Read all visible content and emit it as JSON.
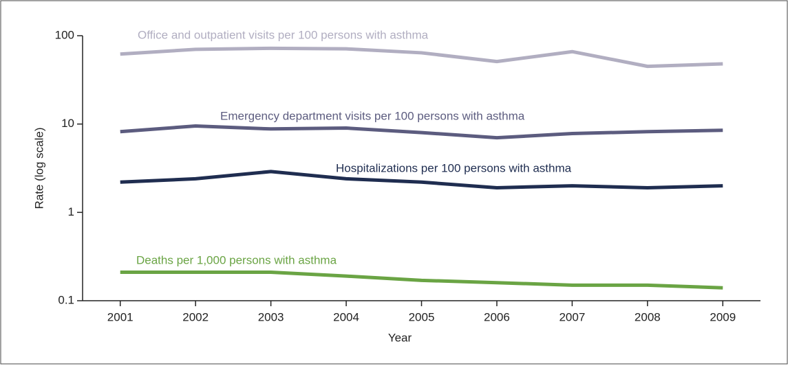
{
  "chart_data": {
    "type": "line",
    "x_label": "Year",
    "y_label": "Rate (log scale)",
    "x": [
      2001,
      2002,
      2003,
      2004,
      2005,
      2006,
      2007,
      2008,
      2009
    ],
    "xlim": [
      2000.5,
      2009.5
    ],
    "xticks": [
      2001,
      2002,
      2003,
      2004,
      2005,
      2006,
      2007,
      2008,
      2009
    ],
    "ylim": [
      0.1,
      100
    ],
    "yticks": [
      0.1,
      1,
      10,
      100
    ],
    "log_y": true,
    "series": [
      {
        "name": "Office and outpatient visits per 100 persons with asthma",
        "color": "#b1aec1",
        "values": [
          62,
          70,
          72,
          71,
          64,
          51,
          66,
          45,
          48
        ]
      },
      {
        "name": "Emergency department visits per 100 persons with asthma",
        "color": "#5c5c7f",
        "values": [
          8.2,
          9.5,
          8.8,
          9.0,
          8.0,
          7.0,
          7.8,
          8.2,
          8.5
        ]
      },
      {
        "name": "Hospitalizations per 100 persons with asthma",
        "color": "#1f2d50",
        "values": [
          2.2,
          2.4,
          2.9,
          2.4,
          2.2,
          1.9,
          2.0,
          1.9,
          2.0
        ]
      },
      {
        "name": "Deaths per 1,000 persons with asthma",
        "color": "#6aa444",
        "values": [
          0.21,
          0.21,
          0.21,
          0.19,
          0.17,
          0.16,
          0.15,
          0.15,
          0.14
        ]
      }
    ]
  }
}
